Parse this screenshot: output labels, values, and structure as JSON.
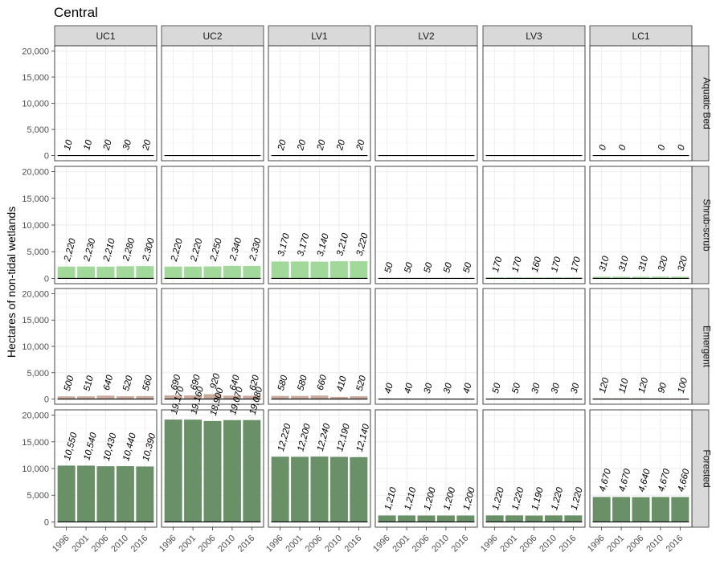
{
  "chart_data": {
    "type": "bar",
    "title": "Central",
    "ylabel": "Hectares of non-tidal wetlands",
    "xlabel": "",
    "ylim": [
      0,
      20000
    ],
    "yticks": [
      0,
      5000,
      10000,
      15000,
      20000
    ],
    "ytick_labels": [
      "0",
      "5,000",
      "10,000",
      "15,000",
      "20,000"
    ],
    "x_categories": [
      "1996",
      "2001",
      "2006",
      "2010",
      "2016"
    ],
    "columns": [
      "UC1",
      "UC2",
      "LV1",
      "LV2",
      "LV3",
      "LC1"
    ],
    "rows": [
      {
        "name": "Aquatic Bed",
        "color": "#ffffff",
        "panels": [
          {
            "values": [
              10,
              10,
              20,
              30,
              20
            ],
            "labels": [
              "10",
              "10",
              "20",
              "30",
              "20"
            ]
          },
          {
            "values": [
              0,
              0,
              0,
              0,
              0
            ],
            "labels": [
              "",
              "",
              "",
              "",
              ""
            ]
          },
          {
            "values": [
              20,
              20,
              20,
              20,
              20
            ],
            "labels": [
              "20",
              "20",
              "20",
              "20",
              "20"
            ]
          },
          {
            "values": [
              0,
              0,
              0,
              0,
              0
            ],
            "labels": [
              "",
              "",
              "",
              "",
              ""
            ]
          },
          {
            "values": [
              0,
              0,
              0,
              0,
              0
            ],
            "labels": [
              "",
              "",
              "",
              "",
              ""
            ]
          },
          {
            "values": [
              0,
              0,
              0,
              0,
              0
            ],
            "labels": [
              "0",
              "0",
              "",
              "0",
              "0"
            ]
          }
        ]
      },
      {
        "name": "Shrub-scrub",
        "color": "#a1d99b",
        "panels": [
          {
            "values": [
              2220,
              2230,
              2210,
              2280,
              2300
            ],
            "labels": [
              "2,220",
              "2,230",
              "2,210",
              "2,280",
              "2,300"
            ]
          },
          {
            "values": [
              2220,
              2220,
              2250,
              2340,
              2330
            ],
            "labels": [
              "2,220",
              "2,220",
              "2,250",
              "2,340",
              "2,330"
            ]
          },
          {
            "values": [
              3170,
              3170,
              3140,
              3210,
              3220
            ],
            "labels": [
              "3,170",
              "3,170",
              "3,140",
              "3,210",
              "3,220"
            ]
          },
          {
            "values": [
              50,
              50,
              50,
              50,
              50
            ],
            "labels": [
              "50",
              "50",
              "50",
              "50",
              "50"
            ]
          },
          {
            "values": [
              170,
              170,
              160,
              170,
              170
            ],
            "labels": [
              "170",
              "170",
              "160",
              "170",
              "170"
            ]
          },
          {
            "values": [
              310,
              310,
              310,
              320,
              320
            ],
            "labels": [
              "310",
              "310",
              "310",
              "320",
              "320"
            ]
          }
        ]
      },
      {
        "name": "Emergent",
        "color": "#c9a99b",
        "panels": [
          {
            "values": [
              500,
              510,
              640,
              520,
              560
            ],
            "labels": [
              "500",
              "510",
              "640",
              "520",
              "560"
            ]
          },
          {
            "values": [
              690,
              690,
              920,
              640,
              620
            ],
            "labels": [
              "690",
              "690",
              "920",
              "640",
              "620"
            ]
          },
          {
            "values": [
              580,
              580,
              660,
              410,
              520
            ],
            "labels": [
              "580",
              "580",
              "660",
              "410",
              "520"
            ]
          },
          {
            "values": [
              40,
              40,
              30,
              30,
              40
            ],
            "labels": [
              "40",
              "40",
              "30",
              "30",
              "40"
            ]
          },
          {
            "values": [
              50,
              50,
              30,
              30,
              30
            ],
            "labels": [
              "50",
              "50",
              "30",
              "30",
              "30"
            ]
          },
          {
            "values": [
              120,
              110,
              120,
              90,
              100
            ],
            "labels": [
              "120",
              "110",
              "120",
              "90",
              "100"
            ]
          }
        ]
      },
      {
        "name": "Forested",
        "color": "#6a9068",
        "panels": [
          {
            "values": [
              10550,
              10540,
              10430,
              10440,
              10390
            ],
            "labels": [
              "10,550",
              "10,540",
              "10,430",
              "10,440",
              "10,390"
            ]
          },
          {
            "values": [
              19170,
              19160,
              18900,
              19070,
              19080
            ],
            "labels": [
              "19,170",
              "19,160",
              "18,900",
              "19,070",
              "19,080"
            ]
          },
          {
            "values": [
              12220,
              12200,
              12240,
              12190,
              12140
            ],
            "labels": [
              "12,220",
              "12,200",
              "12,240",
              "12,190",
              "12,140"
            ]
          },
          {
            "values": [
              1210,
              1210,
              1200,
              1200,
              1200
            ],
            "labels": [
              "1,210",
              "1,210",
              "1,200",
              "1,200",
              "1,200"
            ]
          },
          {
            "values": [
              1220,
              1220,
              1190,
              1220,
              1220
            ],
            "labels": [
              "1,220",
              "1,220",
              "1,190",
              "1,220",
              "1,220"
            ]
          },
          {
            "values": [
              4670,
              4670,
              4640,
              4670,
              4660
            ],
            "labels": [
              "4,670",
              "4,670",
              "4,640",
              "4,670",
              "4,660"
            ]
          }
        ]
      }
    ],
    "grid": true,
    "legend": "none"
  }
}
